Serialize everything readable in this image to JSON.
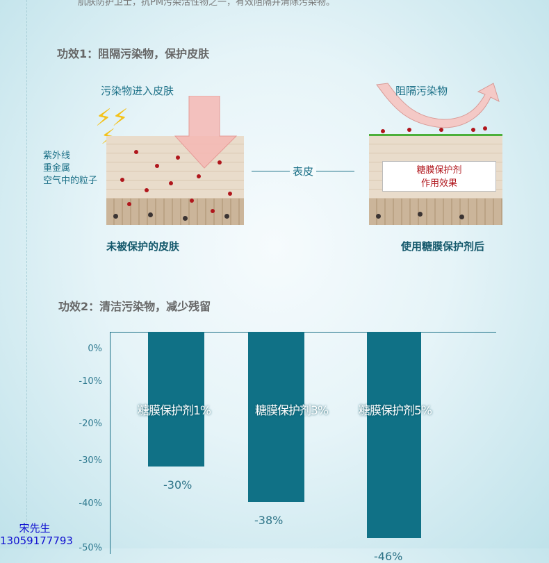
{
  "intro_text": "肌肤防护卫士，抗PM污染活性物之一，有效阻隔并清除污染物。",
  "section1": {
    "title": "功效1：阻隔污染物，保护皮肤",
    "left_label": "污染物进入皮肤",
    "pollutants": [
      "紫外线",
      "重金属",
      "空气中的粒子"
    ],
    "middle_label": "表皮",
    "right_label": "阻隔污染物",
    "effect_box": [
      "糖膜保护剂",
      "作用效果"
    ],
    "left_caption": "未被保护的皮肤",
    "right_caption": "使用糖膜保护剂后"
  },
  "section2": {
    "title": "功效2：清洁污染物，减少残留"
  },
  "chart_data": {
    "type": "bar",
    "categories": [
      "糖膜保护剂1%",
      "糖膜保护剂3%",
      "糖膜保护剂5%"
    ],
    "values": [
      -30,
      -38,
      -46
    ],
    "data_labels": [
      "-30%",
      "-38%",
      "-46%"
    ],
    "ytick_labels": [
      "0%",
      "-10%",
      "-20%",
      "-30%",
      "-40%",
      "-50%"
    ],
    "ylim": [
      -50,
      0
    ],
    "color": "#107186"
  },
  "contact": {
    "name": "宋先生",
    "phone": "13059177793"
  }
}
